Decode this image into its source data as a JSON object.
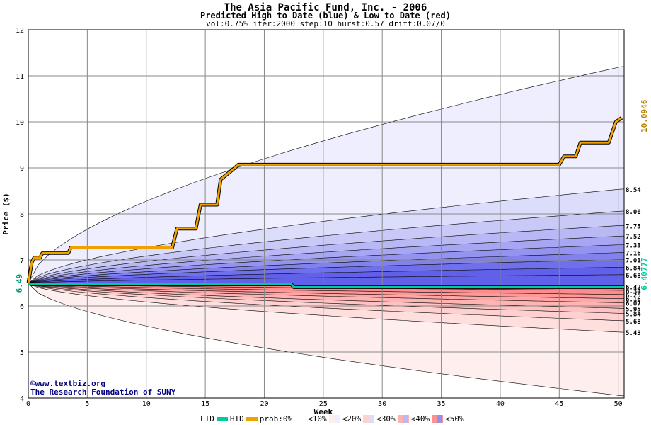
{
  "header": {
    "title": "The Asia Pacific Fund, Inc. - 2006",
    "subtitle": "Predicted High to Date (blue) &  Low to Date (red)",
    "params": "vol:0.75% iter:2000 step:10 hurst:0.57 drift:0.07/0"
  },
  "credits": {
    "site": "www.textbiz.org",
    "org": "The Research Foundation of SUNY"
  },
  "legend": {
    "ltd": "LTD",
    "htd": "HTD",
    "prob": "prob:0%",
    "p10": "<10%",
    "p20": "<20%",
    "p30": "<30%",
    "p40": "<40%",
    "p50": "<50%"
  },
  "chart_data": {
    "type": "area",
    "title": "The Asia Pacific Fund, Inc. - 2006",
    "xlabel": "Week",
    "ylabel": "Price ($)",
    "xlim": [
      0,
      50.5
    ],
    "ylim": [
      4,
      12
    ],
    "x_ticks": [
      0,
      5,
      10,
      15,
      20,
      25,
      30,
      35,
      40,
      45,
      50
    ],
    "y_ticks": [
      4,
      5,
      6,
      7,
      8,
      9,
      10,
      11,
      12
    ],
    "grid": true,
    "start_price": 6.49,
    "start_label": "6.49",
    "htd_end_label": "10.0946",
    "ltd_end_label": "6.40777",
    "high_band_ends": [
      "8.54",
      "8.06",
      "7.75",
      "7.52",
      "7.33",
      "7.16",
      "7.01",
      "6.84",
      "6.68"
    ],
    "low_band_ends": [
      "6.42",
      "6.34",
      "6.25",
      "6.16",
      "6.07",
      "5.95",
      "5.84",
      "5.68",
      "5.43"
    ],
    "high_band_values": [
      11.2,
      8.54,
      8.06,
      7.75,
      7.52,
      7.33,
      7.16,
      7.01,
      6.84,
      6.68
    ],
    "low_band_values": [
      6.42,
      6.34,
      6.25,
      6.16,
      6.07,
      5.95,
      5.84,
      5.68,
      5.43,
      4.05
    ],
    "band_colors_high": [
      "#eeeeff",
      "#dcdcfb",
      "#c9c9f8",
      "#b8b8f5",
      "#a6a6f2",
      "#9494f0",
      "#8282ee",
      "#7070ec",
      "#6060ea"
    ],
    "band_colors_low": [
      "#ff8080",
      "#ff8c8c",
      "#ff9999",
      "#ffa6a6",
      "#ffb4b4",
      "#ffc2c2",
      "#ffd0d0",
      "#ffdede",
      "#ffeeee"
    ],
    "htd_series": {
      "name": "HTD",
      "x": [
        0,
        0.3,
        0.5,
        1.0,
        1.2,
        3.4,
        3.6,
        12.2,
        12.6,
        14.2,
        14.6,
        16.0,
        16.3,
        17.5,
        17.8,
        45.0,
        45.4,
        46.4,
        46.8,
        49.2,
        49.8,
        50.3
      ],
      "values": [
        6.49,
        6.95,
        7.05,
        7.05,
        7.15,
        7.15,
        7.27,
        7.27,
        7.68,
        7.68,
        8.2,
        8.2,
        8.75,
        9.0,
        9.07,
        9.07,
        9.25,
        9.25,
        9.55,
        9.55,
        10.0,
        10.09
      ]
    },
    "ltd_series": {
      "name": "LTD",
      "x": [
        0,
        0.3,
        22.3,
        22.5,
        50.5
      ],
      "values": [
        6.49,
        6.47,
        6.47,
        6.41,
        6.41
      ]
    },
    "colors": {
      "htd": "#f0a000",
      "ltd": "#00c8a0",
      "htd_label": "#b8860b",
      "ltd_label": "#009977",
      "grid": "#888888"
    }
  }
}
